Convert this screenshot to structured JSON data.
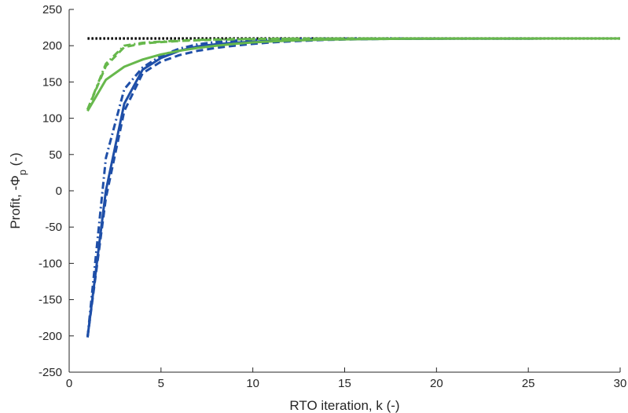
{
  "chart_data": {
    "type": "line",
    "title": "",
    "xlabel": "RTO iteration, k (-)",
    "ylabel": {
      "prefix": "Profit, -Φ",
      "subscript": "p",
      "suffix": " (-)"
    },
    "xlim": [
      0,
      30
    ],
    "ylim": [
      -250,
      250
    ],
    "xticks": [
      0,
      5,
      10,
      15,
      20,
      25,
      30
    ],
    "yticks": [
      -250,
      -200,
      -150,
      -100,
      -50,
      0,
      50,
      100,
      150,
      200,
      250
    ],
    "grid": false,
    "legend": "none",
    "series": [
      {
        "color": "#000000",
        "dash": "dotted",
        "x": [
          1,
          30
        ],
        "y": [
          210,
          210
        ]
      },
      {
        "color": "#1f4fa8",
        "dash": "solid",
        "x": [
          1,
          2,
          3,
          4,
          5,
          6,
          7,
          8,
          9,
          10,
          11,
          12,
          13,
          14,
          15,
          16,
          17,
          18,
          19,
          20,
          21,
          22,
          23,
          24,
          25,
          26,
          27,
          28,
          29,
          30
        ],
        "y": [
          -202,
          0,
          120,
          167,
          183,
          193,
          199,
          202,
          204,
          205.5,
          206.5,
          207.5,
          208,
          208.5,
          209,
          209.2,
          209.4,
          209.5,
          209.6,
          209.7,
          209.8,
          209.8,
          209.9,
          209.9,
          209.9,
          210,
          210,
          210,
          210,
          210
        ]
      },
      {
        "color": "#1f4fa8",
        "dash": "dashed",
        "x": [
          1,
          2,
          3,
          4,
          5,
          6,
          7,
          8,
          9,
          10,
          11,
          12,
          13,
          14,
          15,
          16,
          17,
          18,
          19,
          20,
          21,
          22,
          23,
          24,
          25,
          26,
          27,
          28,
          29,
          30
        ],
        "y": [
          -202,
          -10,
          110,
          162,
          178,
          187,
          193,
          197,
          200,
          202.5,
          204.5,
          206,
          207,
          208,
          208.6,
          209,
          209.3,
          209.5,
          209.6,
          209.7,
          209.8,
          209.8,
          209.9,
          209.9,
          209.9,
          210,
          210,
          210,
          210,
          210
        ]
      },
      {
        "color": "#1f4fa8",
        "dash": "dashdot",
        "x": [
          1,
          2,
          3,
          4,
          5,
          6,
          7,
          8,
          9,
          10,
          11,
          12,
          13,
          14,
          15,
          16,
          17,
          18,
          19,
          20,
          21,
          22,
          23,
          24,
          25,
          26,
          27,
          28,
          29,
          30
        ],
        "y": [
          -202,
          45,
          140,
          170,
          186,
          196,
          202,
          205,
          207,
          208,
          208.8,
          209.2,
          209.5,
          209.7,
          209.8,
          209.9,
          209.9,
          210,
          210,
          210,
          210,
          210,
          210,
          210,
          210,
          210,
          210,
          210,
          210,
          210
        ]
      },
      {
        "color": "#67b84c",
        "dash": "solid",
        "x": [
          1,
          2,
          3,
          4,
          5,
          6,
          7,
          8,
          9,
          10,
          11,
          12,
          13,
          14,
          15,
          16,
          17,
          18,
          19,
          20,
          21,
          22,
          23,
          24,
          25,
          26,
          27,
          28,
          29,
          30
        ],
        "y": [
          110,
          153,
          171,
          181,
          188,
          193,
          197,
          200,
          202.5,
          204.5,
          206,
          207,
          207.8,
          208.4,
          208.8,
          209.1,
          209.3,
          209.5,
          209.6,
          209.7,
          209.8,
          209.8,
          209.9,
          209.9,
          209.9,
          210,
          210,
          210,
          210,
          210
        ]
      },
      {
        "color": "#67b84c",
        "dash": "dashed",
        "x": [
          1,
          2,
          3,
          4,
          5,
          6,
          7,
          8,
          9,
          10,
          11,
          12,
          13,
          14,
          15,
          16,
          17,
          18,
          19,
          20,
          21,
          22,
          23,
          24,
          25,
          26,
          27,
          28,
          29,
          30
        ],
        "y": [
          112,
          172,
          198,
          203,
          205,
          206.5,
          207.5,
          208.2,
          208.7,
          209,
          209.3,
          209.5,
          209.6,
          209.7,
          209.8,
          209.9,
          209.9,
          210,
          210,
          210,
          210,
          210,
          210,
          210,
          210,
          210,
          210,
          210,
          210,
          210
        ]
      },
      {
        "color": "#67b84c",
        "dash": "dashdot",
        "x": [
          1,
          2,
          3,
          4,
          5,
          6,
          7,
          8,
          9,
          10,
          11,
          12,
          13,
          14,
          15,
          16,
          17,
          18,
          19,
          20,
          21,
          22,
          23,
          24,
          25,
          26,
          27,
          28,
          29,
          30
        ],
        "y": [
          112,
          175,
          200,
          204,
          205.5,
          207,
          208,
          208.6,
          209,
          209.3,
          209.5,
          209.7,
          209.8,
          209.9,
          209.9,
          210,
          210,
          210,
          210,
          210,
          210,
          210,
          210,
          210,
          210,
          210,
          210,
          210,
          210,
          210
        ]
      }
    ]
  }
}
